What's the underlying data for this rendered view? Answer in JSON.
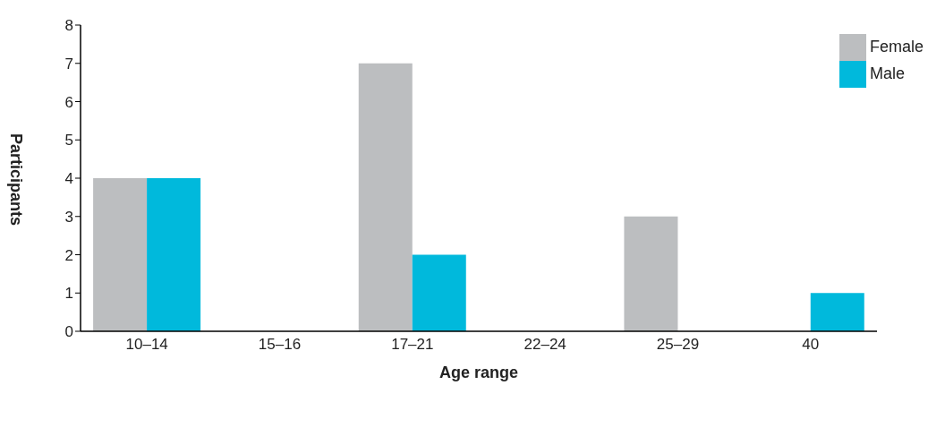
{
  "chart_data": {
    "type": "bar",
    "xlabel": "Age range",
    "ylabel": "Participants",
    "categories": [
      "10–14",
      "15–16",
      "17–21",
      "22–24",
      "25–29",
      "40"
    ],
    "series": [
      {
        "name": "Female",
        "color": "#bcbec0",
        "values": [
          4,
          0,
          7,
          0,
          3,
          0
        ]
      },
      {
        "name": "Male",
        "color": "#00b9dc",
        "values": [
          4,
          0,
          2,
          0,
          0,
          1
        ]
      }
    ],
    "ylim": [
      0,
      8
    ],
    "yticks": [
      0,
      1,
      2,
      3,
      4,
      5,
      6,
      7,
      8
    ],
    "grid": false,
    "legend": "top right"
  }
}
